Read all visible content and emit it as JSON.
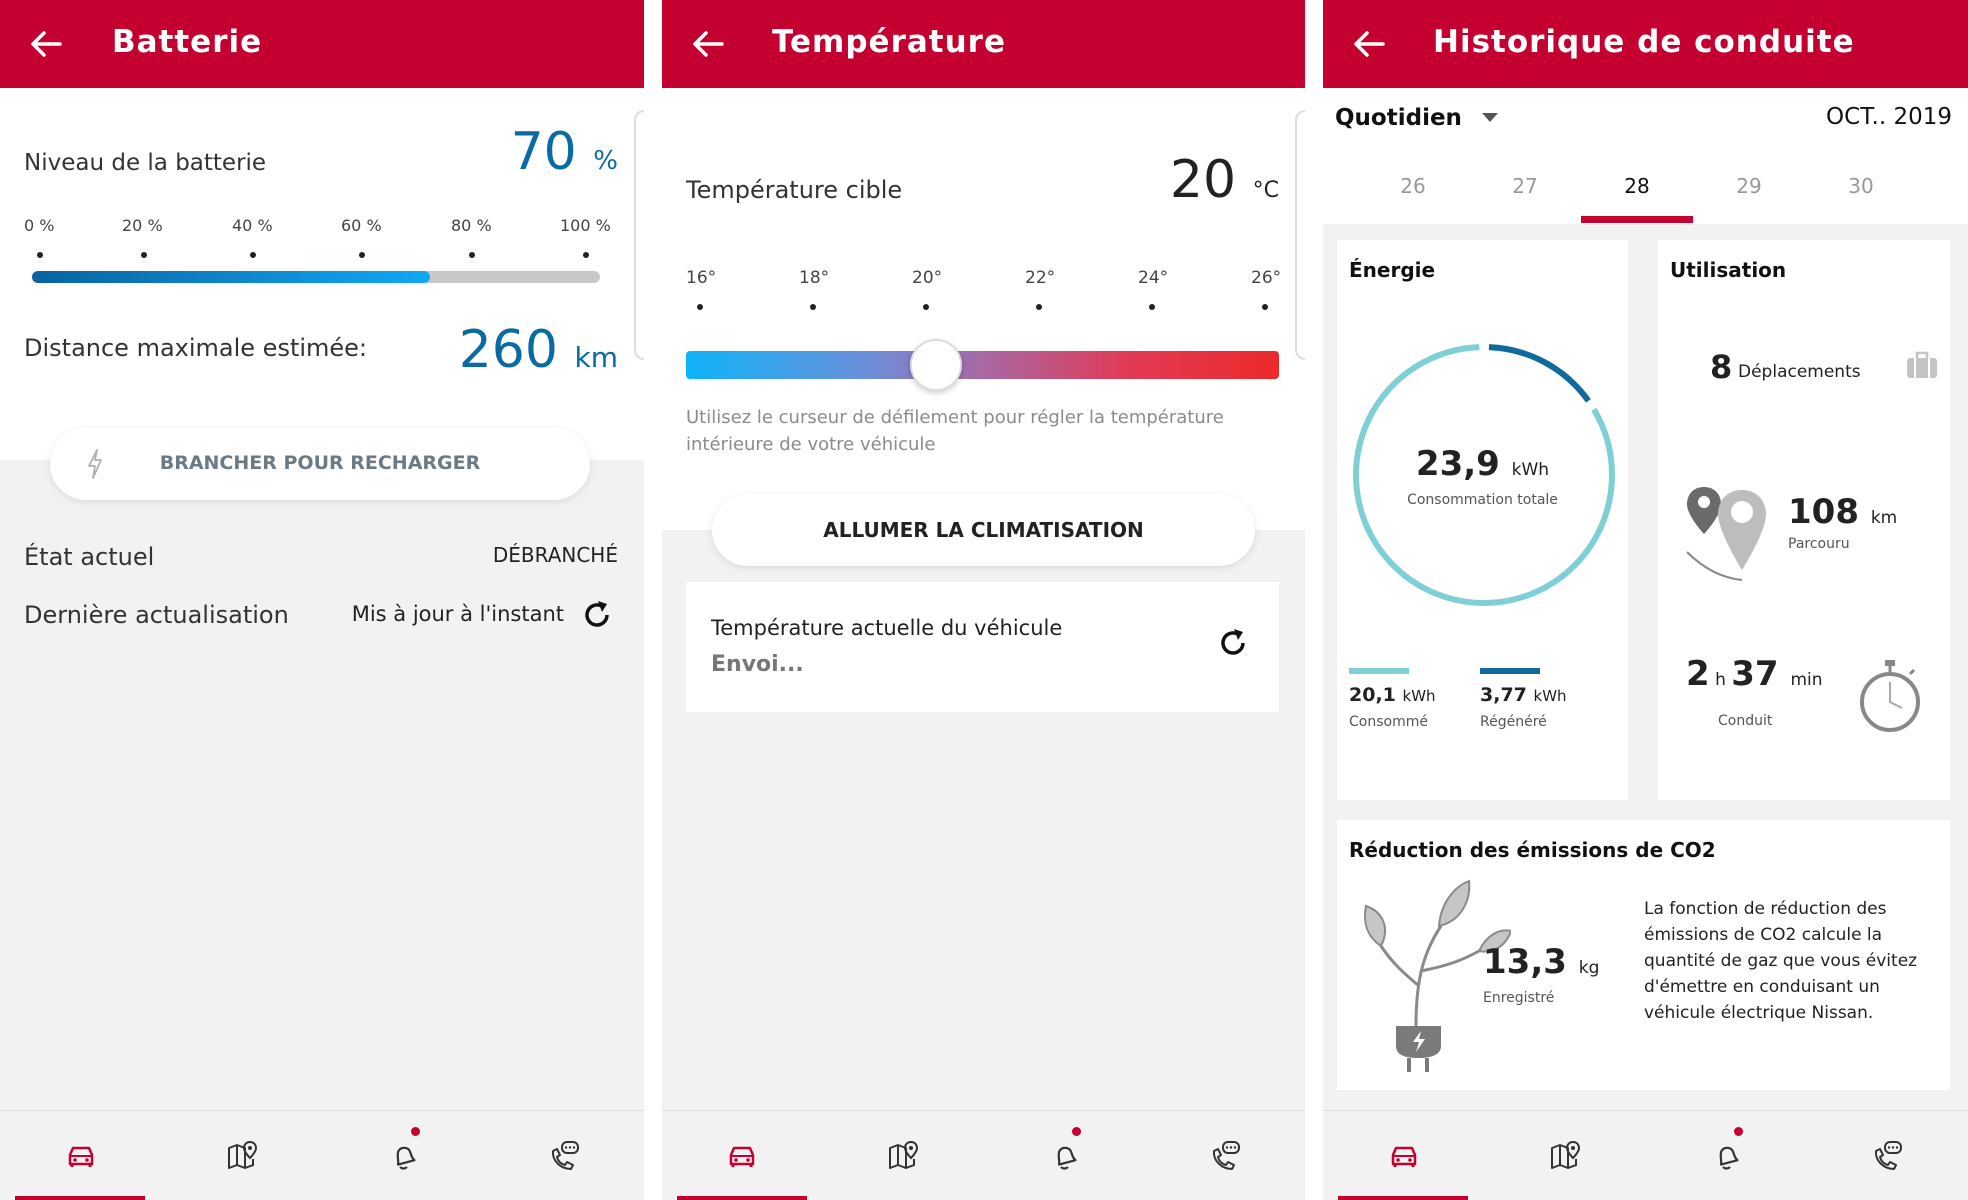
{
  "colors": {
    "brand": "#c3002f",
    "accent_blue": "#0a6aa3",
    "battery_fill": "#0aa3f0",
    "energy_consumed": "#7fd0d6",
    "energy_regen": "#106a9b"
  },
  "nav": {
    "items": [
      {
        "icon": "car-icon",
        "active": true
      },
      {
        "icon": "map-pin-icon"
      },
      {
        "icon": "bell-icon",
        "notification": true
      },
      {
        "icon": "phone-chat-icon"
      }
    ]
  },
  "battery_screen": {
    "title": "Batterie",
    "level_label": "Niveau de la batterie",
    "level_value": "70",
    "level_unit": "%",
    "level_fraction": 0.7,
    "scale_ticks": [
      "0 %",
      "20 %",
      "40 %",
      "60 %",
      "80 %",
      "100 %"
    ],
    "range_label": "Distance maximale estimée:",
    "range_value": "260",
    "range_unit": "km",
    "charge_button": "BRANCHER POUR RECHARGER",
    "state_label": "État actuel",
    "state_value": "DÉBRANCHÉ",
    "update_label": "Dernière actualisation",
    "update_value": "Mis à jour à l'instant"
  },
  "temperature_screen": {
    "title": "Température",
    "target_label": "Température cible",
    "target_value": "20",
    "target_unit": "°C",
    "scale_ticks": [
      "16°",
      "18°",
      "20°",
      "22°",
      "24°",
      "26°"
    ],
    "slider_min": 16,
    "slider_max": 26,
    "slider_value": 20,
    "hint": "Utilisez le curseur de défilement pour régler la température intérieure de votre véhicule",
    "ac_button": "ALLUMER LA CLIMATISATION",
    "current_label": "Température actuelle du véhicule",
    "current_status": "Envoi..."
  },
  "history_screen": {
    "title": "Historique de conduite",
    "period_select": "Quotidien",
    "month": "OCT.. 2019",
    "days": [
      "26",
      "27",
      "28",
      "29",
      "30"
    ],
    "selected_day_index": 2,
    "energy": {
      "title": "Énergie",
      "total_value": "23,9",
      "total_unit": "kWh",
      "total_label": "Consommation totale",
      "consumed_value": "20,1",
      "consumed_unit": "kWh",
      "consumed_label": "Consommé",
      "consumed_kwh": 20.1,
      "regen_value": "3,77",
      "regen_unit": "kWh",
      "regen_label": "Régénéré",
      "regen_kwh": 3.77
    },
    "usage": {
      "title": "Utilisation",
      "trips_value": "8",
      "trips_label": "Déplacements",
      "distance_value": "108",
      "distance_unit": "km",
      "distance_label": "Parcouru",
      "hours_value": "2",
      "hours_unit": "h",
      "minutes_value": "37",
      "minutes_unit": "min",
      "time_label": "Conduit"
    },
    "co2": {
      "title": "Réduction des émissions de CO2",
      "value": "13,3",
      "unit": "kg",
      "label": "Enregistré",
      "description": "La fonction de réduction des émissions de CO2 calcule la quantité de gaz que vous évitez d'émettre en conduisant un véhicule électrique Nissan."
    }
  }
}
